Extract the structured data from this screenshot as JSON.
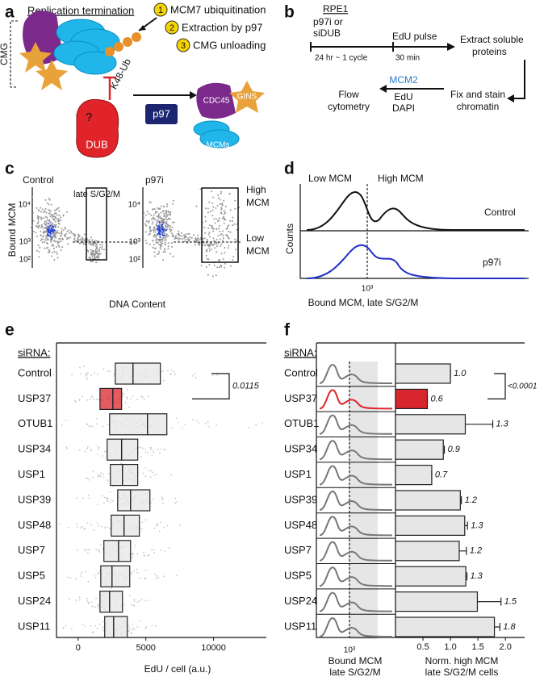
{
  "panels": {
    "a": {
      "label": "a",
      "title": "Replication termination",
      "cmg": "CMG",
      "steps": [
        {
          "number": "1",
          "text": "MCM7 ubiquitination"
        },
        {
          "number": "2",
          "text": "Extraction by p97"
        },
        {
          "number": "3",
          "text": "CMG unloading"
        }
      ],
      "ub": "K48-Ub",
      "question": "?",
      "dub": "DUB",
      "p97": "p97",
      "cdc45": "CDC45",
      "gins": "GINS",
      "mcms": "MCMs"
    },
    "b": {
      "label": "b",
      "cell_line": "RPE1",
      "treatment": [
        "p97i or",
        "siDUB"
      ],
      "pulse": "EdU pulse",
      "time1": "24 hr ~ 1 cycle",
      "time2": "30 min",
      "extract": [
        "Extract soluble",
        "proteins"
      ],
      "fix": [
        "Fix and stain",
        "chromatin"
      ],
      "stains": [
        "MCM2",
        "EdU",
        "DAPI"
      ],
      "flow": [
        "Flow",
        "cytometry"
      ]
    },
    "c": {
      "label": "c",
      "control": "Control",
      "treated": "p97i",
      "gate": "late S/G2/M",
      "high": [
        "High",
        "MCM"
      ],
      "low": [
        "Low",
        "MCM"
      ],
      "ylabel": "Bound MCM",
      "xlabel": "DNA Content",
      "yticks": [
        "10⁴",
        "10³",
        "10²"
      ]
    },
    "d": {
      "label": "d",
      "low": "Low MCM",
      "high": "High MCM",
      "control": "Control",
      "treated": "p97i",
      "ylabel": "Counts",
      "xtick": "10³",
      "xlabel": "Bound MCM, late S/G2/M"
    }
  },
  "chart_data": [
    {
      "type": "box",
      "label": "e",
      "header": "siRNA:",
      "categories": [
        "Control",
        "USP37",
        "OTUB1",
        "USP34",
        "USP1",
        "USP39",
        "USP48",
        "USP7",
        "USP5",
        "USP24",
        "USP11"
      ],
      "q1": [
        2740,
        1610,
        2320,
        2140,
        2380,
        2920,
        2440,
        1900,
        1670,
        1610,
        1960
      ],
      "median": [
        4050,
        2560,
        5120,
        3210,
        3270,
        3870,
        3390,
        2980,
        2500,
        2320,
        2620
      ],
      "q3": [
        6070,
        3210,
        6550,
        4400,
        4400,
        5300,
        4520,
        3870,
        3810,
        3270,
        3630
      ],
      "colors": [
        "#e6e6e6",
        "#d9262c",
        "#e6e6e6",
        "#e6e6e6",
        "#e6e6e6",
        "#e6e6e6",
        "#e6e6e6",
        "#e6e6e6",
        "#e6e6e6",
        "#e6e6e6",
        "#e6e6e6"
      ],
      "xlim": [
        -1600,
        13900
      ],
      "xticks": [
        0,
        5000,
        10000
      ],
      "xlabel": "EdU / cell (a.u.)",
      "annotation": "0.0115"
    },
    {
      "type": "bar",
      "label": "f",
      "header": "siRNA:",
      "categories": [
        "Control",
        "USP37",
        "OTUB1",
        "USP34",
        "USP1",
        "USP39",
        "USP48",
        "USP7",
        "USP5",
        "USP24",
        "USP11"
      ],
      "values": [
        1.0,
        0.58,
        1.27,
        0.87,
        0.66,
        1.18,
        1.26,
        1.16,
        1.28,
        1.49,
        1.8
      ],
      "errors": [
        0,
        0,
        0.5,
        0.02,
        0,
        0.02,
        0.05,
        0.13,
        0.02,
        0.43,
        0.1
      ],
      "value_labels": [
        "1.0",
        "0.6",
        "1.3",
        "0.9",
        "0.7",
        "1.2",
        "1.3",
        "1.2",
        "1.3",
        "1.5",
        "1.8"
      ],
      "colors": [
        "#e6e6e6",
        "#d9262c",
        "#e6e6e6",
        "#e6e6e6",
        "#e6e6e6",
        "#e6e6e6",
        "#e6e6e6",
        "#e6e6e6",
        "#e6e6e6",
        "#e6e6e6",
        "#e6e6e6"
      ],
      "curve_colors": [
        "#777777",
        "#e0242a",
        "#777777",
        "#777777",
        "#777777",
        "#777777",
        "#777777",
        "#777777",
        "#777777",
        "#777777",
        "#777777"
      ],
      "xlim": [
        0,
        2.35
      ],
      "xticks": [
        0.5,
        {
          "value": 1.0,
          "label": "1.0"
        },
        1.5,
        {
          "value": 2.0,
          "label": "2.0"
        }
      ],
      "xlabel": [
        "Norm. high MCM",
        "late S/G2/M cells"
      ],
      "hist_xtick": "10³",
      "hist_xlabel": [
        "Bound MCM",
        "late S/G2/M"
      ],
      "annotation": "<0.0001"
    }
  ]
}
